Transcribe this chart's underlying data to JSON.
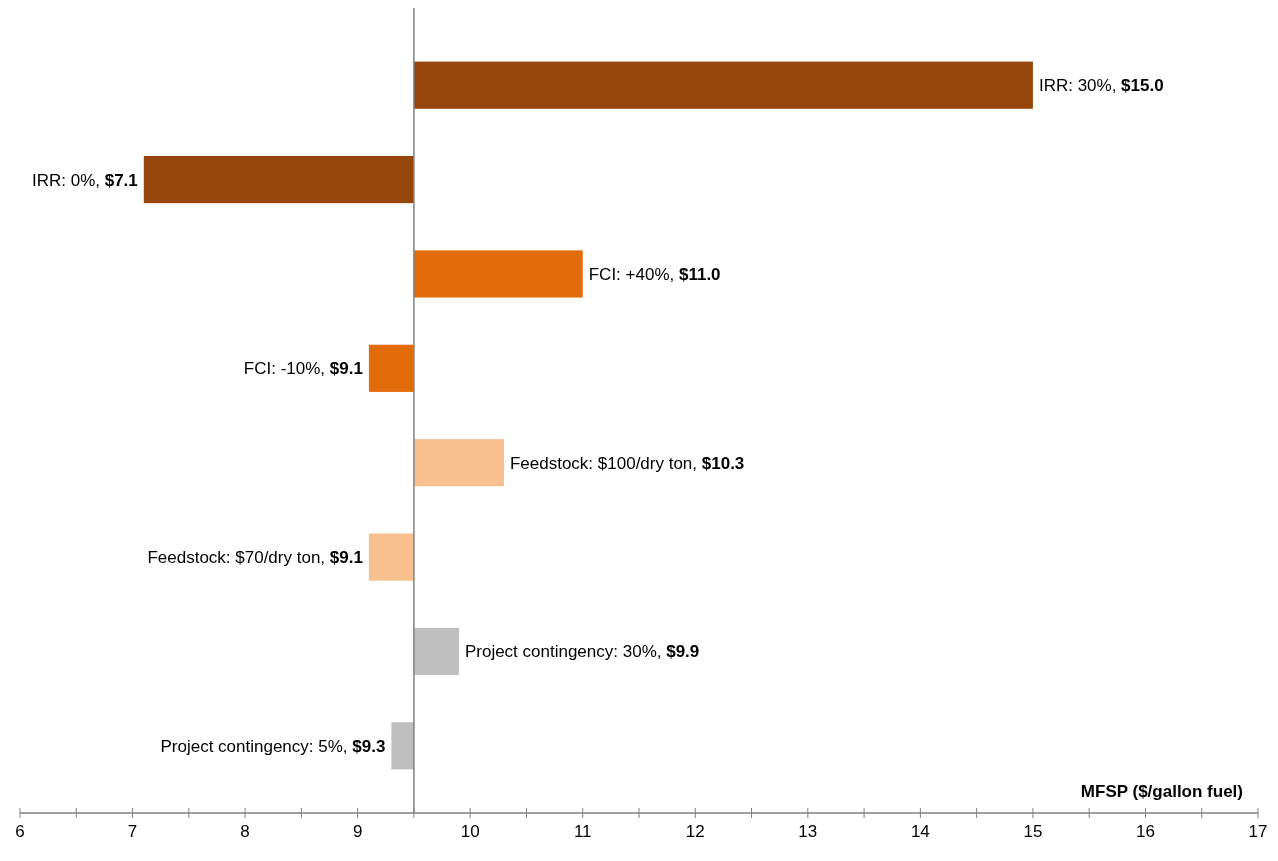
{
  "chart_data": {
    "type": "bar",
    "orientation": "horizontal",
    "xlabel": "MFSP ($/gallon fuel)",
    "categories": [
      null,
      null,
      null,
      null,
      null,
      null,
      null,
      null
    ],
    "base": [
      9.5,
      9.5,
      9.5,
      9.5,
      9.5,
      9.5,
      9.5,
      9.5
    ],
    "values": [
      5.5,
      -2.4,
      1.5,
      -0.4,
      0.8,
      -0.4,
      0.4,
      -0.2
    ],
    "annotations": [
      {
        "text": "IRR: 30%, $15.0",
        "x": 15.0
      },
      {
        "text": "IRR: 0%, $7.1",
        "x": 7.1
      },
      {
        "text": "FCI: +40%, $11.0",
        "x": 11.0
      },
      {
        "text": "FCI: -10%, $9.1",
        "x": 9.1
      },
      {
        "text": "Feedstock: $100/dry ton, $10.3",
        "x": 10.3
      },
      {
        "text": "Feedstock: $70/dry ton, $9.1",
        "x": 9.1
      },
      {
        "text": "Project contingency: 30%, $9.9",
        "x": 9.9
      },
      {
        "text": "Project contingency: 5%, $9.3",
        "x": 9.3
      }
    ],
    "colors": [
      "#96460a",
      "#96460a",
      "#e36c0a",
      "#e36c0a",
      "#f9c090",
      "#f9c090",
      "#bfbfbf",
      "#bfbfbf"
    ],
    "xlim": [
      6,
      17
    ],
    "xticks": [
      6,
      {
        "value": 6.5,
        "label": null
      },
      7,
      {
        "value": 7.5,
        "label": null
      },
      8,
      {
        "value": 8.5,
        "label": null
      },
      9,
      {
        "value": 9.5,
        "label": null
      },
      10,
      {
        "value": 10.5,
        "label": null
      },
      11,
      {
        "value": 11.5,
        "label": null
      },
      12,
      {
        "value": 12.5,
        "label": null
      },
      13,
      {
        "value": 13.5,
        "label": null
      },
      14,
      {
        "value": 14.5,
        "label": null
      },
      15,
      {
        "value": 15.5,
        "label": null
      },
      16,
      {
        "value": 16.5,
        "label": null
      },
      17
    ],
    "ref_lines": [
      {
        "axis": "x",
        "value": 9.5,
        "color": "#808080"
      }
    ],
    "grid": false
  }
}
